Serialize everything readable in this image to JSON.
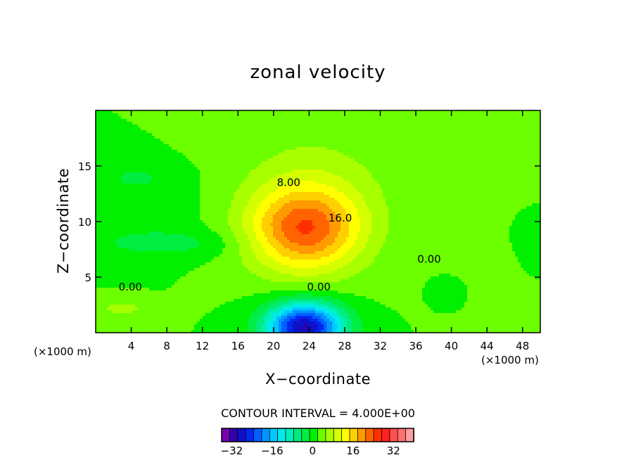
{
  "chart_data": {
    "type": "contour",
    "title": "zonal velocity",
    "xlabel": "X−coordinate",
    "ylabel": "Z−coordinate",
    "x_scale_label": "(×1000 m)",
    "y_scale_label": "(×1000 m)",
    "xlim": [
      0,
      50
    ],
    "ylim": [
      0,
      20
    ],
    "x_ticks": [
      4,
      8,
      12,
      16,
      20,
      24,
      28,
      32,
      36,
      40,
      44,
      48
    ],
    "y_ticks": [
      5,
      10,
      15
    ],
    "contour_interval_label": "CONTOUR INTERVAL = 4.000E+00",
    "contour_labels": [
      {
        "text": "8.00",
        "x": 21.7,
        "z": 13.2
      },
      {
        "text": "16.0",
        "x": 27.5,
        "z": 10.0
      },
      {
        "text": "0.00",
        "x": 3.9,
        "z": 3.8
      },
      {
        "text": "0.00",
        "x": 25.1,
        "z": 3.8
      },
      {
        "text": "0.00",
        "x": 37.5,
        "z": 6.3
      }
    ],
    "colorbar": {
      "tick_labels": [
        "−32",
        "−16",
        "0",
        "16",
        "32"
      ],
      "tick_values": [
        -32,
        -16,
        0,
        16,
        32
      ],
      "levels": [
        -36,
        40
      ],
      "colors": [
        "#7a00b0",
        "#3000a8",
        "#1010c8",
        "#0028f0",
        "#0060ff",
        "#0094ff",
        "#00c8ff",
        "#00ecec",
        "#00f0b8",
        "#00ec80",
        "#00ee40",
        "#00f000",
        "#6cff00",
        "#a8ff00",
        "#d4ff00",
        "#ffff00",
        "#ffd000",
        "#ff9a00",
        "#ff6400",
        "#ff3000",
        "#ff2020",
        "#ff5050",
        "#ff7070",
        "#ff9e9e"
      ]
    },
    "field": {
      "background_value": 2,
      "features": [
        {
          "name": "jet-core",
          "x": 23.5,
          "z": 9.3,
          "peak": 22
        },
        {
          "name": "surface-minimum",
          "x": 23.5,
          "z": 0.5,
          "peak": -30
        },
        {
          "name": "upper-left-lobe",
          "x": 4.5,
          "z": 14,
          "peak": -1
        },
        {
          "name": "mid-left-band",
          "x": 8,
          "z": 8,
          "peak": -2
        },
        {
          "name": "lower-left-band",
          "x": 3,
          "z": 2.2,
          "peak": 6
        },
        {
          "name": "right-ridge",
          "x": 43,
          "z": 5.5,
          "peak": 4
        }
      ]
    }
  }
}
